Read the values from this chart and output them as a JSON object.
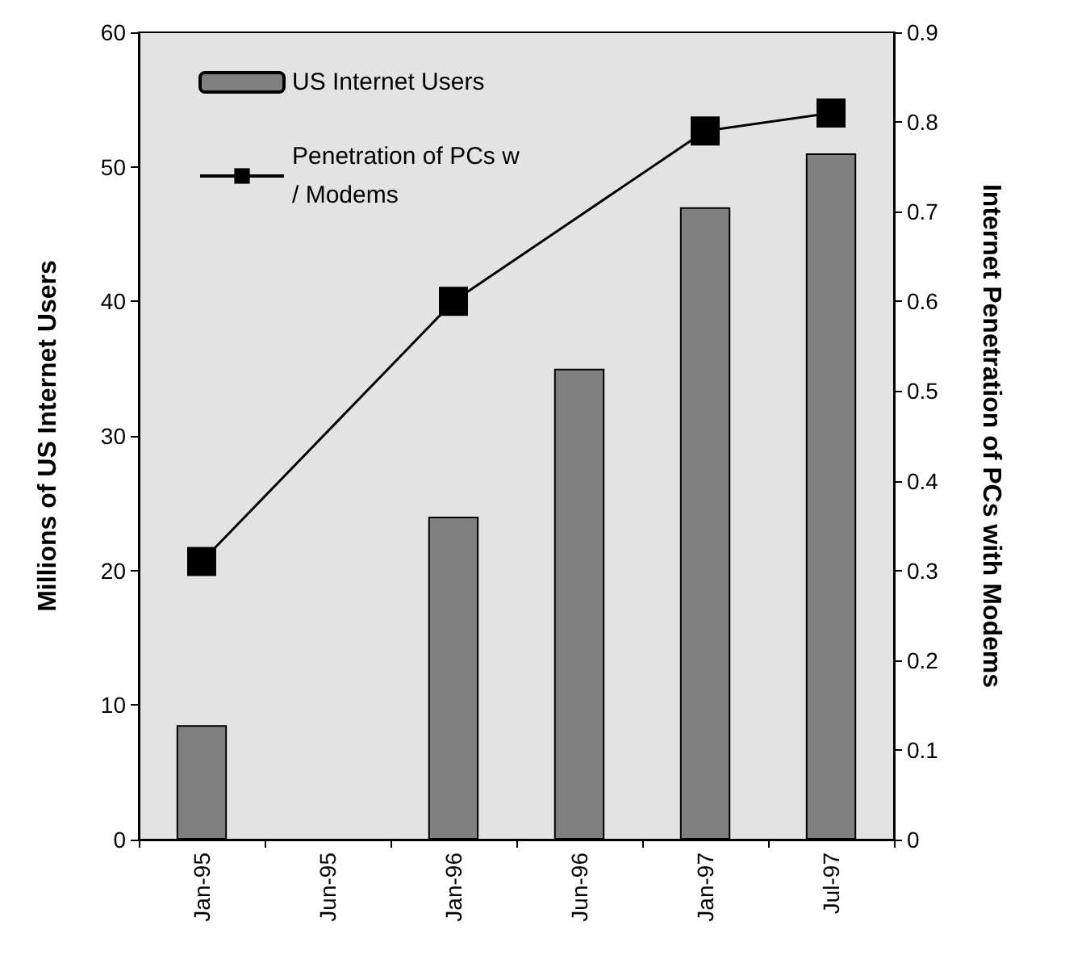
{
  "chart_data": {
    "type": "bar",
    "xlabel": null,
    "ylabel": "Millions of US Internet Users",
    "y2label": "Internet Penetration of PCs with Modems",
    "categories": [
      "Jan-95",
      "Jun-95",
      "Jan-96",
      "Jun-96",
      "Jan-97",
      "Jul-97"
    ],
    "series": [
      {
        "name": "US Internet Users",
        "color": "#808080",
        "values": [
          8.5,
          null,
          24,
          35,
          47,
          51
        ]
      },
      {
        "name": "Penetration of PCs w/ Modems",
        "type": "line",
        "axis": "y2",
        "color": "#000000",
        "marker": "square",
        "values": [
          0.31,
          null,
          0.6,
          null,
          0.79,
          0.81
        ]
      }
    ],
    "ylim": [
      0,
      60
    ],
    "yticks": [
      0,
      10,
      20,
      30,
      40,
      50,
      60
    ],
    "y2lim": [
      0,
      0.9
    ],
    "y2ticks": [
      0,
      0.1,
      0.2,
      0.3,
      0.4,
      0.5,
      0.6,
      0.7,
      0.8,
      0.9
    ],
    "grid": false,
    "legend": "top left"
  }
}
